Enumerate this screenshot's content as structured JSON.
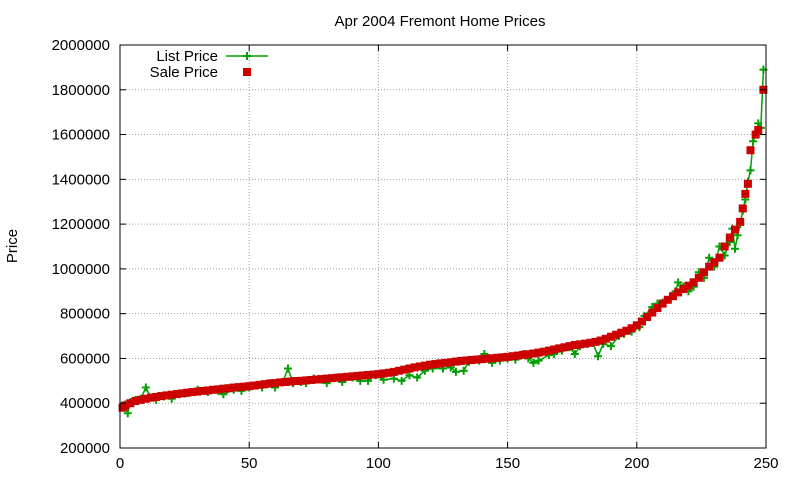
{
  "chart_data": {
    "type": "line",
    "title": "Apr 2004 Fremont Home Prices",
    "xlabel": "",
    "ylabel": "Price",
    "xlim": [
      0,
      250
    ],
    "ylim": [
      200000,
      2000000
    ],
    "xticks": [
      0,
      50,
      100,
      150,
      200,
      250
    ],
    "yticks": [
      200000,
      400000,
      600000,
      800000,
      1000000,
      1200000,
      1400000,
      1600000,
      1800000,
      2000000
    ],
    "grid": true,
    "legend_position": "top-left",
    "series": [
      {
        "name": "List Price",
        "style": "line-with-plus-markers",
        "color": "#00a000",
        "points": [
          [
            1,
            385000
          ],
          [
            2,
            395000
          ],
          [
            3,
            355000
          ],
          [
            4,
            405000
          ],
          [
            5,
            410000
          ],
          [
            6,
            415000
          ],
          [
            8,
            420000
          ],
          [
            10,
            470000
          ],
          [
            12,
            425000
          ],
          [
            14,
            415000
          ],
          [
            17,
            430000
          ],
          [
            20,
            420000
          ],
          [
            23,
            440000
          ],
          [
            26,
            445000
          ],
          [
            30,
            460000
          ],
          [
            34,
            450000
          ],
          [
            38,
            455000
          ],
          [
            40,
            440000
          ],
          [
            44,
            460000
          ],
          [
            47,
            455000
          ],
          [
            50,
            470000
          ],
          [
            55,
            470000
          ],
          [
            58,
            490000
          ],
          [
            60,
            470000
          ],
          [
            63,
            495000
          ],
          [
            65,
            555000
          ],
          [
            67,
            490000
          ],
          [
            70,
            495000
          ],
          [
            72,
            490000
          ],
          [
            75,
            510000
          ],
          [
            78,
            505000
          ],
          [
            80,
            490000
          ],
          [
            84,
            515000
          ],
          [
            86,
            495000
          ],
          [
            90,
            515000
          ],
          [
            93,
            500000
          ],
          [
            96,
            500000
          ],
          [
            99,
            525000
          ],
          [
            102,
            505000
          ],
          [
            106,
            510000
          ],
          [
            109,
            500000
          ],
          [
            112,
            525000
          ],
          [
            115,
            515000
          ],
          [
            118,
            545000
          ],
          [
            121,
            555000
          ],
          [
            125,
            555000
          ],
          [
            128,
            560000
          ],
          [
            130,
            540000
          ],
          [
            133,
            545000
          ],
          [
            135,
            585000
          ],
          [
            139,
            590000
          ],
          [
            141,
            620000
          ],
          [
            144,
            580000
          ],
          [
            147,
            590000
          ],
          [
            150,
            600000
          ],
          [
            153,
            595000
          ],
          [
            156,
            620000
          ],
          [
            158,
            600000
          ],
          [
            160,
            580000
          ],
          [
            162,
            590000
          ],
          [
            166,
            615000
          ],
          [
            168,
            620000
          ],
          [
            171,
            635000
          ],
          [
            174,
            650000
          ],
          [
            176,
            620000
          ],
          [
            178,
            655000
          ],
          [
            181,
            665000
          ],
          [
            183,
            670000
          ],
          [
            185,
            610000
          ],
          [
            187,
            665000
          ],
          [
            190,
            655000
          ],
          [
            193,
            700000
          ],
          [
            195,
            710000
          ],
          [
            198,
            720000
          ],
          [
            201,
            740000
          ],
          [
            203,
            790000
          ],
          [
            206,
            830000
          ],
          [
            208,
            845000
          ],
          [
            210,
            850000
          ],
          [
            213,
            870000
          ],
          [
            215,
            900000
          ],
          [
            216,
            940000
          ],
          [
            218,
            920000
          ],
          [
            220,
            900000
          ],
          [
            222,
            920000
          ],
          [
            224,
            985000
          ],
          [
            226,
            960000
          ],
          [
            228,
            1050000
          ],
          [
            230,
            1010000
          ],
          [
            232,
            1100000
          ],
          [
            234,
            1060000
          ],
          [
            236,
            1120000
          ],
          [
            237,
            1180000
          ],
          [
            238,
            1090000
          ],
          [
            239,
            1150000
          ],
          [
            240,
            1200000
          ],
          [
            241,
            1260000
          ],
          [
            242,
            1310000
          ],
          [
            243,
            1390000
          ],
          [
            244,
            1440000
          ],
          [
            245,
            1570000
          ],
          [
            246,
            1600000
          ],
          [
            247,
            1650000
          ],
          [
            248,
            1630000
          ],
          [
            249,
            1890000
          ]
        ]
      },
      {
        "name": "Sale Price",
        "style": "square-markers",
        "color": "#cc0000",
        "points": [
          [
            1,
            380000
          ],
          [
            2,
            390000
          ],
          [
            4,
            400000
          ],
          [
            6,
            410000
          ],
          [
            8,
            415000
          ],
          [
            10,
            420000
          ],
          [
            12,
            425000
          ],
          [
            14,
            428000
          ],
          [
            16,
            432000
          ],
          [
            18,
            435000
          ],
          [
            20,
            438000
          ],
          [
            22,
            441000
          ],
          [
            24,
            444000
          ],
          [
            26,
            447000
          ],
          [
            28,
            450000
          ],
          [
            30,
            452000
          ],
          [
            32,
            455000
          ],
          [
            34,
            457000
          ],
          [
            36,
            460000
          ],
          [
            38,
            462000
          ],
          [
            40,
            465000
          ],
          [
            42,
            467000
          ],
          [
            44,
            470000
          ],
          [
            46,
            472000
          ],
          [
            48,
            474000
          ],
          [
            50,
            476000
          ],
          [
            52,
            479000
          ],
          [
            54,
            482000
          ],
          [
            56,
            485000
          ],
          [
            58,
            488000
          ],
          [
            60,
            490000
          ],
          [
            62,
            493000
          ],
          [
            64,
            495000
          ],
          [
            66,
            497000
          ],
          [
            68,
            499000
          ],
          [
            70,
            500000
          ],
          [
            72,
            502000
          ],
          [
            74,
            504000
          ],
          [
            76,
            506000
          ],
          [
            78,
            508000
          ],
          [
            80,
            510000
          ],
          [
            82,
            512000
          ],
          [
            84,
            514000
          ],
          [
            86,
            516000
          ],
          [
            88,
            518000
          ],
          [
            90,
            520000
          ],
          [
            92,
            522000
          ],
          [
            94,
            524000
          ],
          [
            96,
            526000
          ],
          [
            98,
            528000
          ],
          [
            100,
            530000
          ],
          [
            102,
            533000
          ],
          [
            104,
            536000
          ],
          [
            106,
            540000
          ],
          [
            108,
            545000
          ],
          [
            110,
            550000
          ],
          [
            112,
            555000
          ],
          [
            114,
            560000
          ],
          [
            116,
            564000
          ],
          [
            118,
            568000
          ],
          [
            120,
            572000
          ],
          [
            122,
            575000
          ],
          [
            124,
            578000
          ],
          [
            126,
            580000
          ],
          [
            128,
            583000
          ],
          [
            130,
            586000
          ],
          [
            132,
            589000
          ],
          [
            134,
            591000
          ],
          [
            136,
            593000
          ],
          [
            138,
            595000
          ],
          [
            140,
            597000
          ],
          [
            142,
            599000
          ],
          [
            144,
            601000
          ],
          [
            146,
            603000
          ],
          [
            148,
            605000
          ],
          [
            150,
            607000
          ],
          [
            152,
            610000
          ],
          [
            154,
            613000
          ],
          [
            156,
            616000
          ],
          [
            158,
            619000
          ],
          [
            160,
            622000
          ],
          [
            162,
            626000
          ],
          [
            164,
            630000
          ],
          [
            166,
            635000
          ],
          [
            168,
            640000
          ],
          [
            170,
            645000
          ],
          [
            172,
            650000
          ],
          [
            174,
            655000
          ],
          [
            176,
            660000
          ],
          [
            178,
            663000
          ],
          [
            180,
            666000
          ],
          [
            182,
            670000
          ],
          [
            184,
            674000
          ],
          [
            186,
            680000
          ],
          [
            188,
            688000
          ],
          [
            190,
            697000
          ],
          [
            192,
            706000
          ],
          [
            194,
            715000
          ],
          [
            196,
            724000
          ],
          [
            198,
            735000
          ],
          [
            200,
            748000
          ],
          [
            202,
            765000
          ],
          [
            204,
            785000
          ],
          [
            206,
            805000
          ],
          [
            208,
            825000
          ],
          [
            210,
            845000
          ],
          [
            212,
            862000
          ],
          [
            214,
            878000
          ],
          [
            216,
            895000
          ],
          [
            218,
            910000
          ],
          [
            220,
            925000
          ],
          [
            222,
            940000
          ],
          [
            224,
            960000
          ],
          [
            226,
            985000
          ],
          [
            228,
            1010000
          ],
          [
            230,
            1030000
          ],
          [
            232,
            1050000
          ],
          [
            234,
            1100000
          ],
          [
            236,
            1140000
          ],
          [
            238,
            1175000
          ],
          [
            240,
            1210000
          ],
          [
            241,
            1270000
          ],
          [
            242,
            1335000
          ],
          [
            243,
            1380000
          ],
          [
            244,
            1530000
          ],
          [
            246,
            1600000
          ],
          [
            247,
            1620000
          ],
          [
            249,
            1800000
          ]
        ]
      }
    ]
  }
}
